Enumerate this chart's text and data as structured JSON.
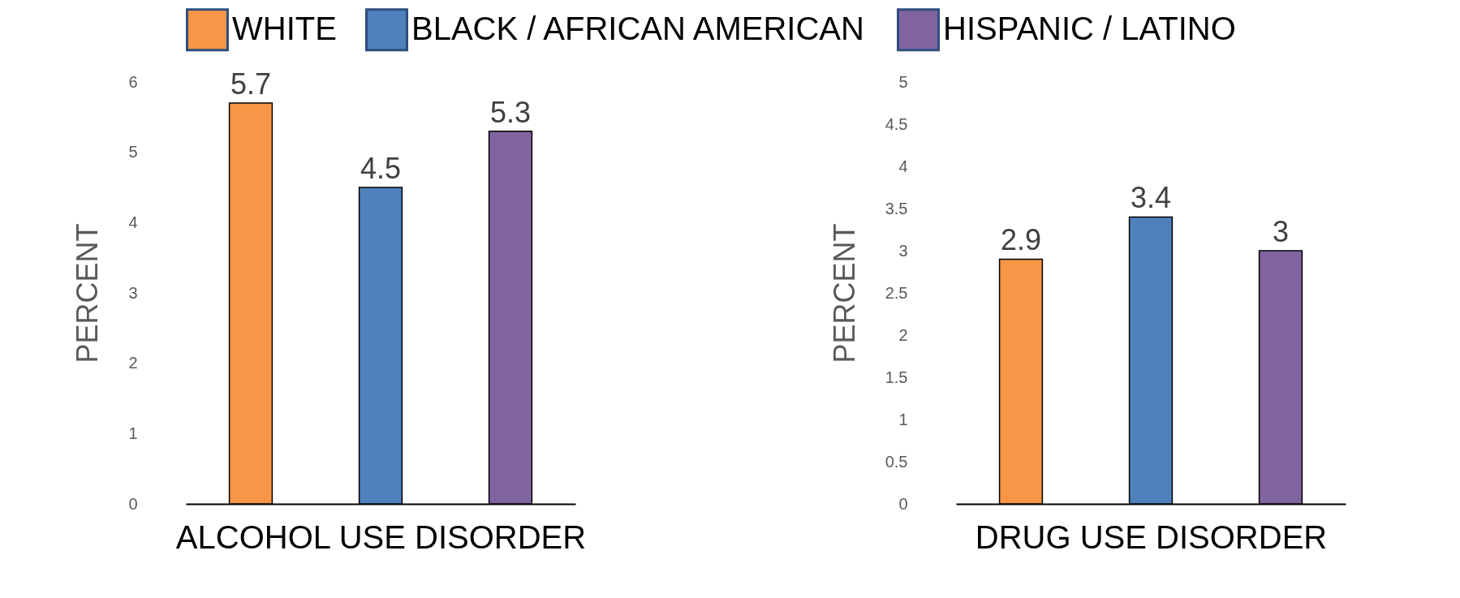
{
  "chart_data": [
    {
      "type": "bar",
      "xlabel": "ALCOHOL USE DISORDER",
      "ylabel": "PERCENT",
      "ylim": [
        0,
        6
      ],
      "yticks": [
        0,
        1,
        2,
        3,
        4,
        5,
        6
      ],
      "data_labels": true,
      "legend": "top",
      "grid": false,
      "series": [
        {
          "name": "WHITE",
          "color": "#f79646",
          "values": [
            5.7
          ]
        },
        {
          "name": "BLACK / AFRICAN AMERICAN",
          "color": "#4f81bd",
          "values": [
            4.5
          ]
        },
        {
          "name": "HISPANIC / LATINO",
          "color": "#8064a2",
          "values": [
            5.3
          ]
        }
      ]
    },
    {
      "type": "bar",
      "xlabel": "DRUG USE DISORDER",
      "ylabel": "PERCENT",
      "ylim": [
        0,
        5
      ],
      "yticks": [
        0,
        0.5,
        1,
        1.5,
        2,
        2.5,
        3,
        3.5,
        4,
        4.5,
        5
      ],
      "data_labels": true,
      "legend": "top",
      "grid": false,
      "series": [
        {
          "name": "WHITE",
          "color": "#f79646",
          "values": [
            2.9
          ]
        },
        {
          "name": "BLACK / AFRICAN AMERICAN",
          "color": "#4f81bd",
          "values": [
            3.4
          ]
        },
        {
          "name": "HISPANIC / LATINO",
          "color": "#8064a2",
          "values": [
            3
          ]
        }
      ]
    }
  ]
}
